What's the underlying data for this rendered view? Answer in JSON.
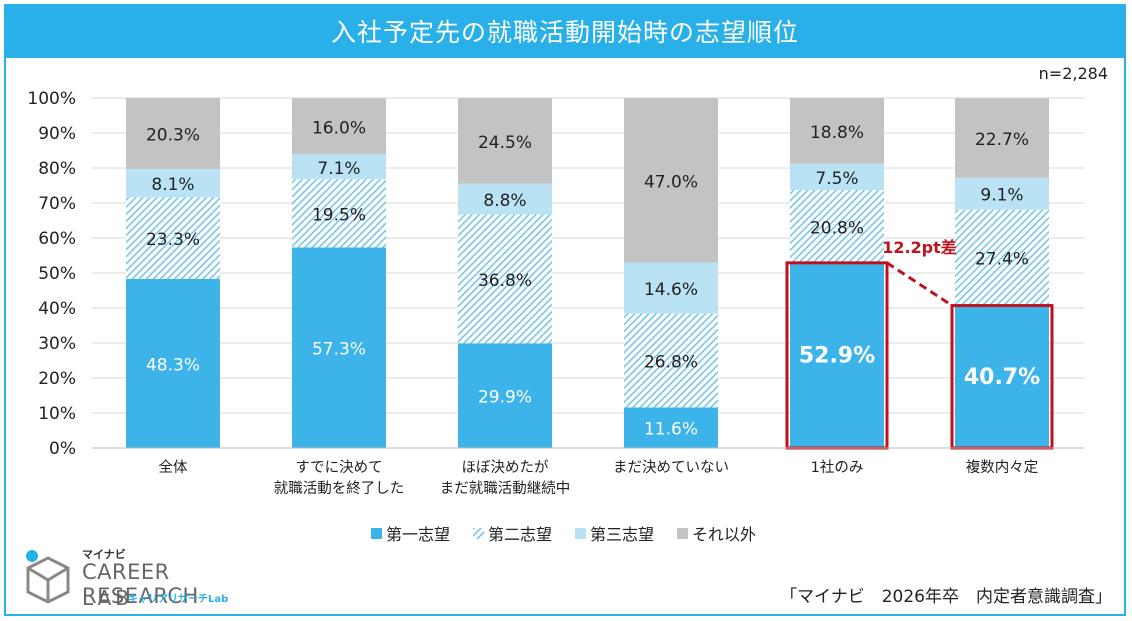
{
  "title": "入社予定先の就職活動開始時の志望順位",
  "sample_size": "n=2,284",
  "source": "「マイナビ　2026年卒　内定者意識調査」",
  "logo": {
    "line1": "マイナビ",
    "line2": "CAREER RESEARCH",
    "line3": "LAB",
    "line4": "キャリアリサーチLab"
  },
  "colors": {
    "first": "#3cb4ea",
    "second_hatch": "#5bbde8",
    "third": "#b9e3f5",
    "other": "#c3c3c3",
    "highlight": "#c0121e",
    "title_bg": "#29b0e8"
  },
  "chart_data": {
    "type": "bar",
    "stacked": true,
    "categories": [
      [
        "全体"
      ],
      [
        "すでに決めて",
        "就職活動を終了した"
      ],
      [
        "ほぼ決めたが",
        "まだ就職活動継続中"
      ],
      [
        "まだ決めていない"
      ],
      [
        "1社のみ"
      ],
      [
        "複数内々定"
      ]
    ],
    "series": [
      {
        "name": "第一志望",
        "values": [
          48.3,
          57.3,
          29.9,
          11.6,
          52.9,
          40.7
        ]
      },
      {
        "name": "第二志望",
        "values": [
          23.3,
          19.5,
          36.8,
          26.8,
          20.8,
          27.4
        ]
      },
      {
        "name": "第三志望",
        "values": [
          8.1,
          7.1,
          8.8,
          14.6,
          7.5,
          9.1
        ]
      },
      {
        "name": "それ以外",
        "values": [
          20.3,
          16.0,
          24.5,
          47.0,
          18.8,
          22.7
        ]
      }
    ],
    "yticks": [
      "0%",
      "10%",
      "20%",
      "30%",
      "40%",
      "50%",
      "60%",
      "70%",
      "80%",
      "90%",
      "100%"
    ],
    "ylim": [
      0,
      100
    ],
    "grid": true,
    "legend_position": "bottom",
    "annotation": {
      "text": "12.2pt差",
      "from_category": 4,
      "to_category": 5,
      "series": 0
    }
  }
}
